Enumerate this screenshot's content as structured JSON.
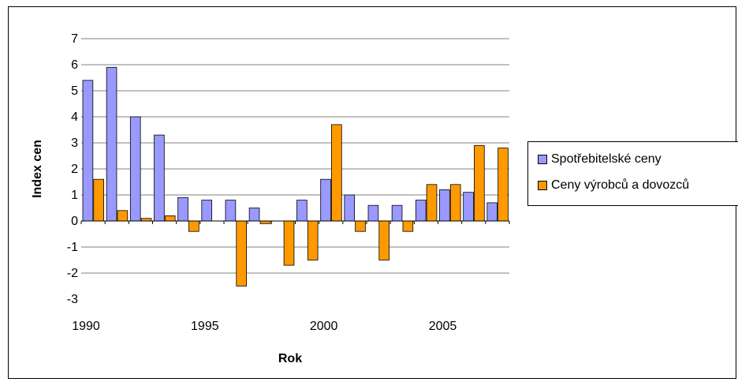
{
  "chart_data": {
    "type": "bar",
    "xlabel": "Rok",
    "ylabel": "Index cen",
    "ylim": [
      -3,
      7
    ],
    "yticks": [
      "7",
      "6",
      "5",
      "4",
      "3",
      "2",
      "1",
      "0",
      "-1",
      "-2",
      "-3"
    ],
    "xticks": [
      "1990",
      "1995",
      "2000",
      "2005"
    ],
    "categories": [
      "1990",
      "1991",
      "1992",
      "1993",
      "1994",
      "1995",
      "1996",
      "1997",
      "1998",
      "1999",
      "2000",
      "2001",
      "2002",
      "2003",
      "2004",
      "2005",
      "2006",
      "2007"
    ],
    "grid": true,
    "legend_position": "right",
    "series": [
      {
        "name": "Spotřebitelské ceny",
        "color": "#9999ff",
        "values": [
          5.4,
          5.9,
          4.0,
          3.3,
          0.9,
          0.8,
          0.8,
          0.5,
          0.0,
          0.8,
          1.6,
          1.0,
          0.6,
          0.6,
          0.8,
          1.2,
          1.1,
          0.7
        ]
      },
      {
        "name": "Ceny výrobců a dovozců",
        "color": "#ff9900",
        "values": [
          1.6,
          0.4,
          0.1,
          0.2,
          -0.4,
          0.0,
          -2.5,
          -0.1,
          -1.7,
          -1.5,
          3.7,
          -0.4,
          -1.5,
          -0.4,
          1.4,
          1.4,
          2.9,
          2.8
        ]
      }
    ]
  }
}
